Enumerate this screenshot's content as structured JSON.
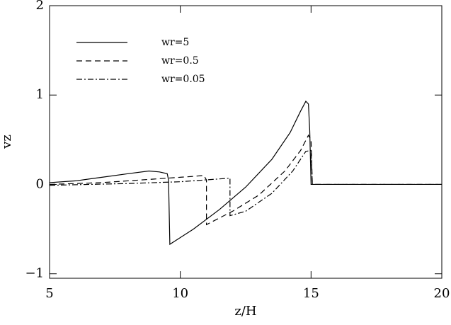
{
  "chart_data": {
    "type": "line",
    "xlabel": "z/H",
    "ylabel": "vz",
    "xlim": [
      5,
      20
    ],
    "ylim": [
      -1.05,
      2
    ],
    "xticks": [
      5,
      10,
      15,
      20
    ],
    "yticks": [
      -1,
      0,
      1,
      2
    ],
    "series": [
      {
        "name": "wr=5",
        "color": "#000000",
        "dash": "solid",
        "x": [
          5,
          6,
          7,
          8,
          8.8,
          9.2,
          9.5,
          9.55,
          9.6,
          10.5,
          11.5,
          12.5,
          13.5,
          14.2,
          14.6,
          14.8,
          14.9,
          14.95,
          15.0,
          20
        ],
        "values": [
          0.02,
          0.04,
          0.08,
          0.12,
          0.15,
          0.14,
          0.12,
          0.05,
          -0.67,
          -0.5,
          -0.28,
          -0.03,
          0.28,
          0.58,
          0.82,
          0.93,
          0.9,
          0.6,
          0,
          0
        ]
      },
      {
        "name": "wr=0.5",
        "color": "#000000",
        "dash": "dashed",
        "x": [
          5,
          7,
          9,
          10.5,
          10.9,
          11.0,
          11.0,
          12,
          13,
          14,
          14.6,
          14.9,
          15.0,
          15.05,
          20
        ],
        "values": [
          0.0,
          0.02,
          0.06,
          0.09,
          0.1,
          0.05,
          -0.45,
          -0.3,
          -0.12,
          0.15,
          0.38,
          0.55,
          0.5,
          0,
          0
        ]
      },
      {
        "name": "wr=0.05",
        "color": "#000000",
        "dash": "dashdot",
        "x": [
          5,
          8,
          10,
          11.9,
          11.9,
          12.5,
          13.5,
          14.3,
          14.8,
          15.0,
          15.05,
          20
        ],
        "values": [
          -0.01,
          0.01,
          0.03,
          0.07,
          -0.35,
          -0.3,
          -0.1,
          0.15,
          0.37,
          0.38,
          0,
          0
        ]
      }
    ]
  }
}
